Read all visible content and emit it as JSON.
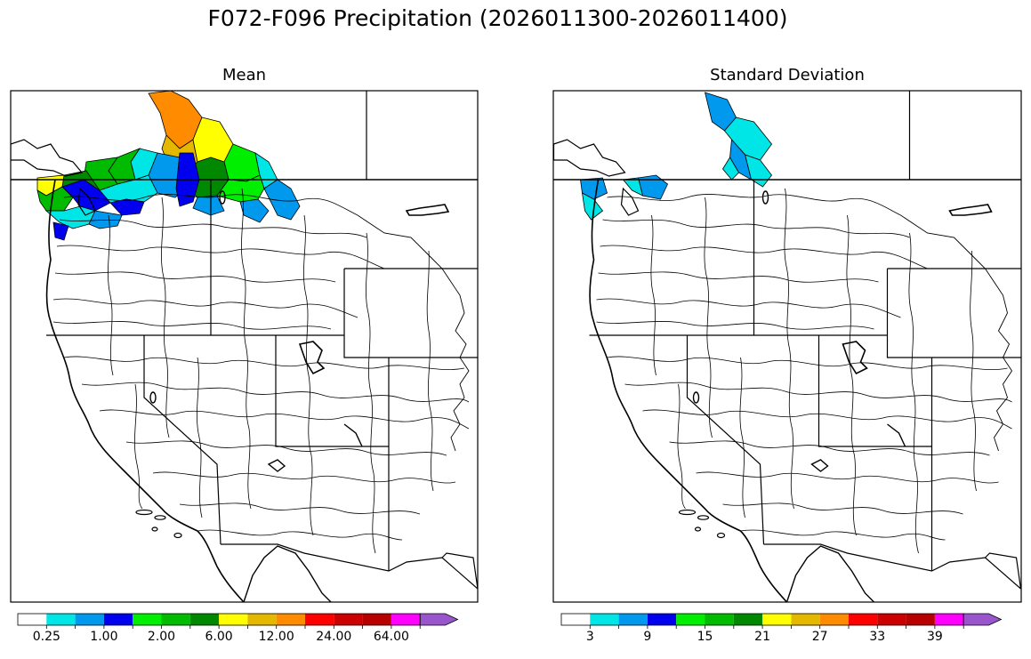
{
  "figure": {
    "title": "F072-F096 Precipitation (2026011300-2026011400)"
  },
  "panels": [
    {
      "title": "Mean",
      "colorbar": {
        "tick_labels": [
          "0.25",
          "1.00",
          "2.00",
          "6.00",
          "12.00",
          "24.00",
          "64.00"
        ],
        "colors": [
          "#ffffff",
          "#00e5e5",
          "#0099ee",
          "#0000ee",
          "#00ee00",
          "#00bb00",
          "#008800",
          "#ffff00",
          "#e5b800",
          "#ff8c00",
          "#ff0000",
          "#cc0000",
          "#b80000",
          "#ff00ff",
          "#9955cc"
        ]
      }
    },
    {
      "title": "Standard Deviation",
      "colorbar": {
        "tick_labels": [
          "3",
          "9",
          "15",
          "21",
          "27",
          "33",
          "39"
        ],
        "colors": [
          "#ffffff",
          "#00e5e5",
          "#0099ee",
          "#0000ee",
          "#00ee00",
          "#00bb00",
          "#008800",
          "#ffff00",
          "#e5b800",
          "#ff8c00",
          "#ff0000",
          "#cc0000",
          "#b80000",
          "#ff00ff",
          "#9955cc"
        ]
      }
    }
  ]
}
